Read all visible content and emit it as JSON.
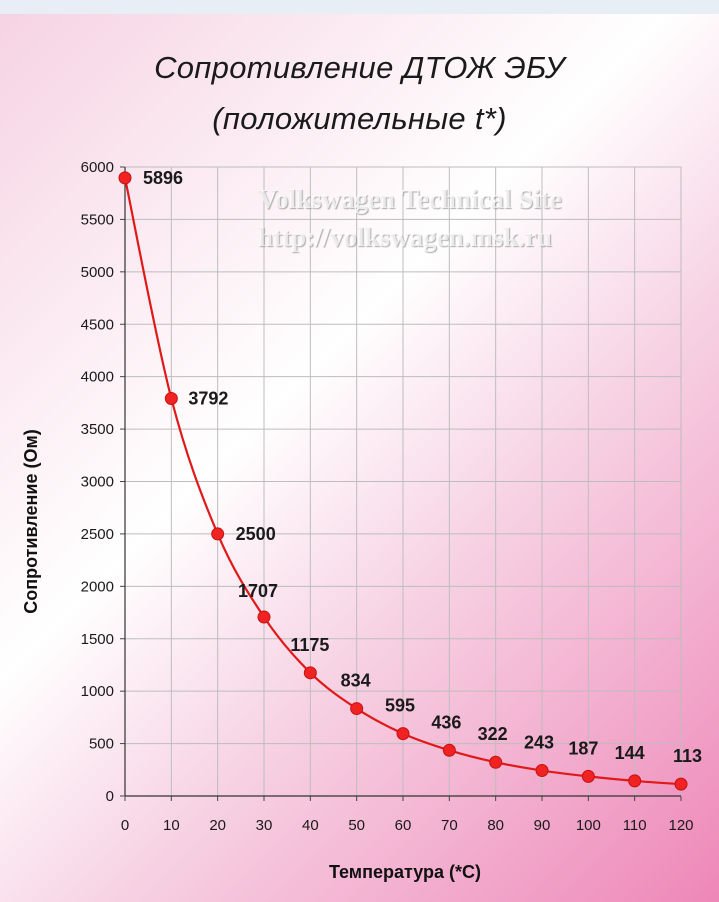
{
  "chart_data": {
    "type": "line",
    "title": "Сопротивление ДТОЖ  ЭБУ",
    "subtitle": "(положительные t*)",
    "xlabel": "Температура (*C)",
    "ylabel": "Сопротивление (Ом)",
    "x": [
      0,
      10,
      20,
      30,
      40,
      50,
      60,
      70,
      80,
      90,
      100,
      110,
      120
    ],
    "values": [
      5896,
      3792,
      2500,
      1707,
      1175,
      834,
      595,
      436,
      322,
      243,
      187,
      144,
      113
    ],
    "data_labels": [
      "5896",
      "3792",
      "2500",
      "1707",
      "1175",
      "834",
      "595",
      "436",
      "322",
      "243",
      "187",
      "144",
      "113"
    ],
    "xlim": [
      0,
      120
    ],
    "ylim": [
      0,
      6000
    ],
    "x_ticks": [
      "0",
      "10",
      "20",
      "30",
      "40",
      "50",
      "60",
      "70",
      "80",
      "90",
      "100",
      "110",
      "120"
    ],
    "y_ticks": [
      "0",
      "500",
      "1000",
      "1500",
      "2000",
      "2500",
      "3000",
      "3500",
      "4000",
      "4500",
      "5000",
      "5500",
      "6000"
    ],
    "grid": true,
    "legend": "none",
    "line_color": "#e01919",
    "marker_color": "#f02222",
    "grid_color": "#bdbdbd"
  },
  "watermark": {
    "line1": "Volkswagen Technical Site",
    "line2": "http://volkswagen.msk.ru"
  }
}
